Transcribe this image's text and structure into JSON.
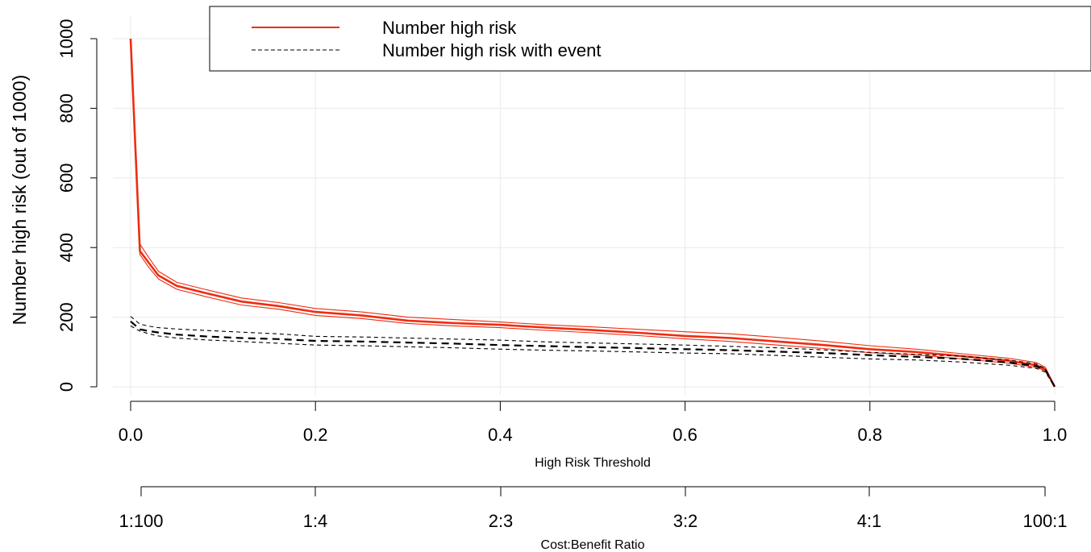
{
  "chart_data": {
    "type": "line",
    "xlabel": "High Risk Threshold",
    "ylabel": "Number high risk (out of 1000)",
    "secondary_xlabel": "Cost:Benefit Ratio",
    "xlim": [
      0,
      1
    ],
    "ylim": [
      0,
      1000
    ],
    "x_ticks": [
      "0.0",
      "0.2",
      "0.4",
      "0.6",
      "0.8",
      "1.0"
    ],
    "y_ticks": [
      "0",
      "200",
      "400",
      "600",
      "800",
      "1000"
    ],
    "secondary_ticks": [
      "1:100",
      "1:4",
      "2:3",
      "3:2",
      "4:1",
      "100:1"
    ],
    "grid": true,
    "legend_position": "top-right",
    "legend": [
      {
        "label": "Number high risk",
        "color": "#ee2c11",
        "style": "solid"
      },
      {
        "label": "Number high risk with event",
        "color": "#000000",
        "style": "dashed"
      }
    ],
    "x": [
      0,
      0.01,
      0.02,
      0.03,
      0.05,
      0.08,
      0.12,
      0.16,
      0.2,
      0.25,
      0.3,
      0.35,
      0.4,
      0.45,
      0.5,
      0.55,
      0.6,
      0.65,
      0.7,
      0.75,
      0.8,
      0.85,
      0.9,
      0.95,
      0.98,
      0.99,
      1.0
    ],
    "series": [
      {
        "name": "Number high risk",
        "color": "#ee2c11",
        "width": 2.6,
        "dash": "",
        "values": [
          1000,
          390,
          355,
          320,
          290,
          270,
          245,
          232,
          215,
          205,
          190,
          183,
          178,
          170,
          163,
          155,
          146,
          140,
          130,
          120,
          108,
          100,
          88,
          75,
          62,
          50,
          0
        ]
      },
      {
        "name": "",
        "color": "#ee2c11",
        "width": 1.1,
        "dash": "",
        "values": [
          1000,
          410,
          370,
          332,
          300,
          280,
          255,
          242,
          225,
          215,
          200,
          193,
          186,
          178,
          172,
          165,
          158,
          152,
          142,
          131,
          118,
          108,
          95,
          82,
          70,
          56,
          0
        ]
      },
      {
        "name": "",
        "color": "#ee2c11",
        "width": 1.1,
        "dash": "",
        "values": [
          1000,
          380,
          342,
          310,
          280,
          260,
          235,
          223,
          205,
          196,
          182,
          175,
          170,
          162,
          155,
          147,
          138,
          130,
          120,
          110,
          98,
          92,
          80,
          68,
          56,
          46,
          0
        ]
      },
      {
        "name": "Number high risk with event",
        "color": "#000000",
        "width": 2.2,
        "dash": "9,6",
        "values": [
          188,
          165,
          160,
          156,
          150,
          145,
          140,
          137,
          132,
          130,
          127,
          124,
          120,
          117,
          114,
          111,
          108,
          105,
          101,
          97,
          91,
          86,
          80,
          70,
          60,
          48,
          0
        ]
      },
      {
        "name": "",
        "color": "#000000",
        "width": 1.1,
        "dash": "5,4",
        "values": [
          202,
          180,
          174,
          170,
          166,
          162,
          157,
          152,
          145,
          143,
          140,
          137,
          134,
          129,
          126,
          123,
          120,
          116,
          112,
          106,
          99,
          93,
          88,
          77,
          66,
          52,
          0
        ]
      },
      {
        "name": "",
        "color": "#000000",
        "width": 1.1,
        "dash": "5,4",
        "values": [
          175,
          160,
          152,
          146,
          140,
          135,
          130,
          125,
          120,
          118,
          115,
          112,
          108,
          105,
          103,
          100,
          97,
          95,
          90,
          85,
          80,
          77,
          71,
          62,
          53,
          42,
          0
        ]
      }
    ]
  }
}
